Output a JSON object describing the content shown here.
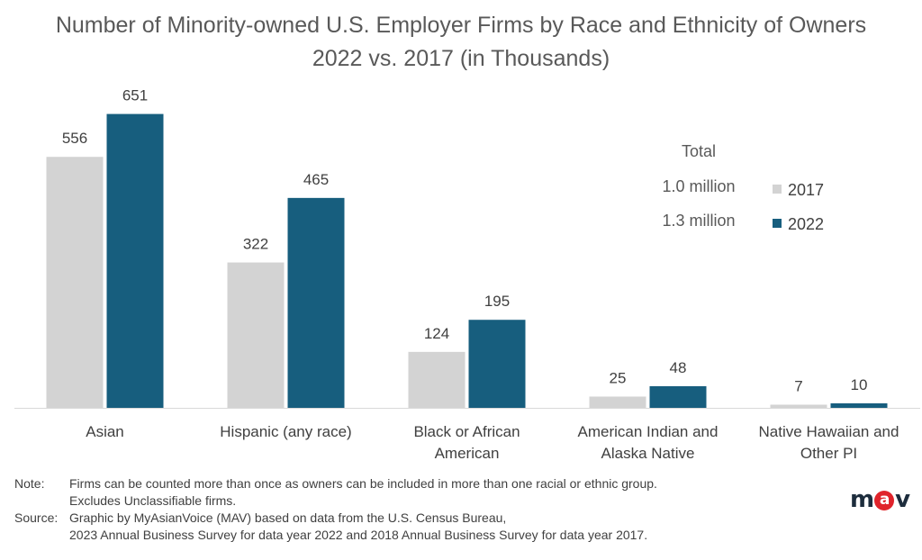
{
  "chart_data": {
    "type": "bar",
    "title": "Number of Minority-owned U.S. Employer Firms by Race and Ethnicity of Owners",
    "subtitle": "2022 vs. 2017 (in Thousands)",
    "categories": [
      [
        "Asian"
      ],
      [
        "Hispanic (any race)"
      ],
      [
        "Black or African",
        "American"
      ],
      [
        "American Indian and",
        "Alaska Native"
      ],
      [
        "Native Hawaiian and",
        "Other PI"
      ]
    ],
    "series": [
      {
        "name": "2017",
        "color": "#d3d3d3",
        "values": [
          556,
          322,
          124,
          25,
          7
        ]
      },
      {
        "name": "2022",
        "color": "#175e7e",
        "values": [
          651,
          465,
          195,
          48,
          10
        ]
      }
    ],
    "ylim": [
      0,
      720
    ],
    "grid": false,
    "legend": {
      "placement": "right"
    },
    "totals": {
      "heading": "Total",
      "2017": "1.0 million",
      "2022": "1.3 million"
    }
  },
  "notes": {
    "note_label": "Note:",
    "note_line1": "Firms can be counted more than once as owners can be included in more than one racial or ethnic group.",
    "note_line2": "Excludes Unclassifiable firms.",
    "source_label": "Source:",
    "source_line1": "Graphic by MyAsianVoice (MAV) based on data from the U.S. Census Bureau,",
    "source_line2": "2023 Annual Business Survey for data year 2022 and 2018 Annual Business Survey for data year 2017."
  },
  "logo": {
    "text": "mav"
  }
}
